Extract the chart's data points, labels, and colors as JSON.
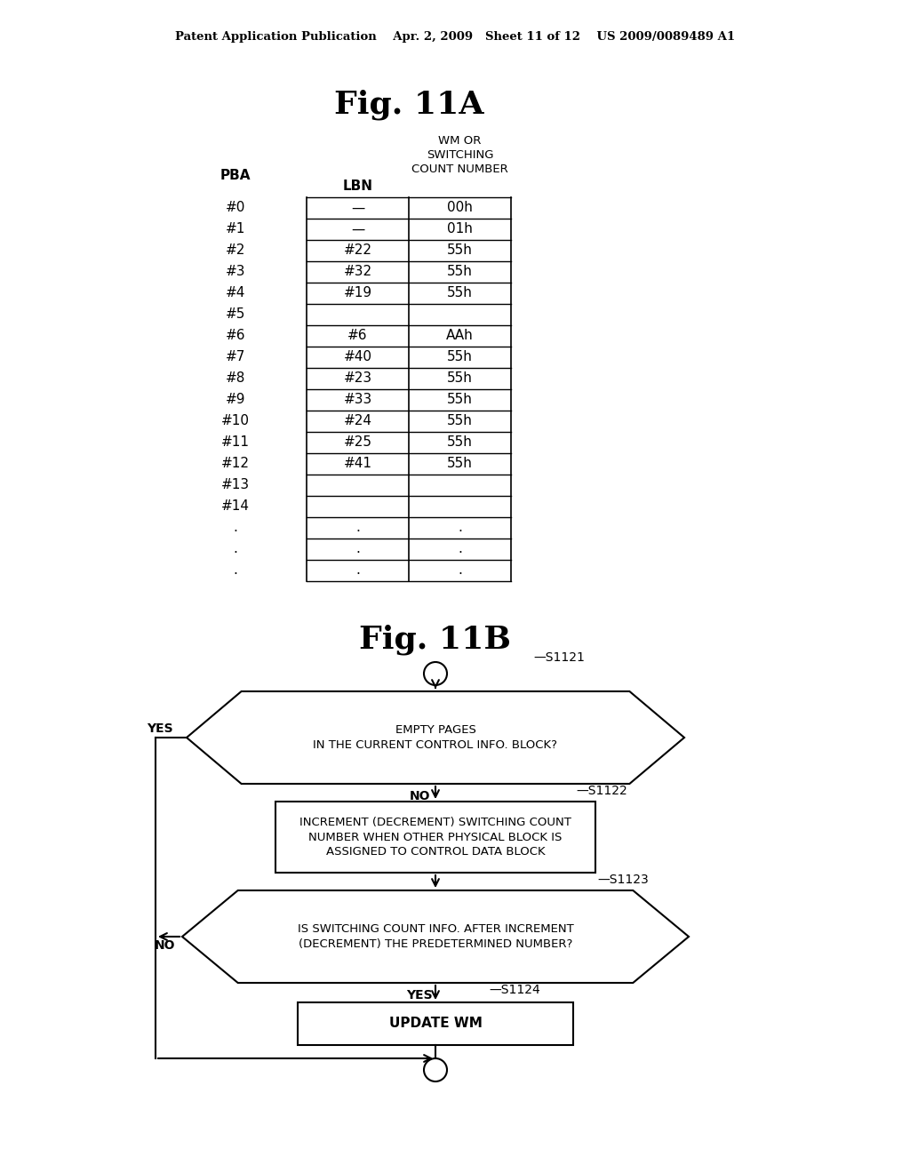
{
  "bg_color": "#ffffff",
  "header_text": "Patent Application Publication    Apr. 2, 2009   Sheet 11 of 12    US 2009/0089489 A1",
  "fig11A_title": "Fig. 11A",
  "fig11B_title": "Fig. 11B",
  "table_rows": [
    [
      "#0",
      "—",
      "00h"
    ],
    [
      "#1",
      "—",
      "01h"
    ],
    [
      "#2",
      "#22",
      "55h"
    ],
    [
      "#3",
      "#32",
      "55h"
    ],
    [
      "#4",
      "#19",
      "55h"
    ],
    [
      "#5",
      "",
      ""
    ],
    [
      "#6",
      "#6",
      "AAh"
    ],
    [
      "#7",
      "#40",
      "55h"
    ],
    [
      "#8",
      "#23",
      "55h"
    ],
    [
      "#9",
      "#33",
      "55h"
    ],
    [
      "#10",
      "#24",
      "55h"
    ],
    [
      "#11",
      "#25",
      "55h"
    ],
    [
      "#12",
      "#41",
      "55h"
    ],
    [
      "#13",
      "",
      ""
    ],
    [
      "#14",
      "",
      ""
    ],
    [
      ".",
      ".",
      "."
    ],
    [
      ".",
      ".",
      "."
    ],
    [
      ".",
      ".",
      "."
    ]
  ],
  "flowchart": {
    "s1121_label": "—S1121",
    "s1122_label": "—S1122",
    "s1123_label": "—S1123",
    "s1124_label": "—S1124",
    "diamond1_text": "EMPTY PAGES\nIN THE CURRENT CONTROL INFO. BLOCK?",
    "diamond1_yes": "YES",
    "diamond1_no": "NO",
    "rect1_text": "INCREMENT (DECREMENT) SWITCHING COUNT\nNUMBER WHEN OTHER PHYSICAL BLOCK IS\nASSIGNED TO CONTROL DATA BLOCK",
    "diamond2_text": "IS SWITCHING COUNT INFO. AFTER INCREMENT\n(DECREMENT) THE PREDETERMINED NUMBER?",
    "diamond2_no": "NO",
    "diamond2_yes": "YES",
    "rect2_text": "UPDATE WM"
  }
}
